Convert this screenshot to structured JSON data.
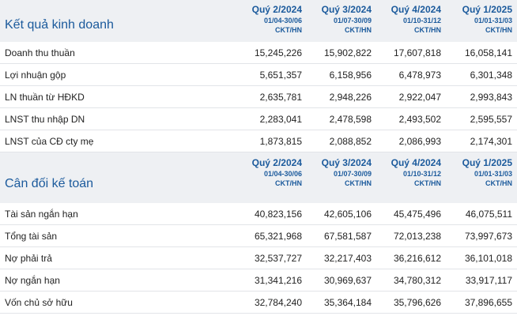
{
  "income": {
    "title": "Kết quả kinh doanh",
    "quarters": [
      {
        "name": "Quý 2/2024",
        "range": "01/04-30/06",
        "unit": "CKT/HN"
      },
      {
        "name": "Quý 3/2024",
        "range": "01/07-30/09",
        "unit": "CKT/HN"
      },
      {
        "name": "Quý 4/2024",
        "range": "01/10-31/12",
        "unit": "CKT/HN"
      },
      {
        "name": "Quý 1/2025",
        "range": "01/01-31/03",
        "unit": "CKT/HN"
      }
    ],
    "rows": [
      {
        "label": "Doanh thu thuần",
        "values": [
          "15,245,226",
          "15,902,822",
          "17,607,818",
          "16,058,141"
        ]
      },
      {
        "label": "Lợi nhuận gộp",
        "values": [
          "5,651,357",
          "6,158,956",
          "6,478,973",
          "6,301,348"
        ]
      },
      {
        "label": "LN thuần từ HĐKD",
        "values": [
          "2,635,781",
          "2,948,226",
          "2,922,047",
          "2,993,843"
        ]
      },
      {
        "label": "LNST thu nhập DN",
        "values": [
          "2,283,041",
          "2,478,598",
          "2,493,502",
          "2,595,557"
        ]
      },
      {
        "label": "LNST của CĐ cty mẹ",
        "values": [
          "1,873,815",
          "2,088,852",
          "2,086,993",
          "2,174,301"
        ]
      }
    ]
  },
  "balance": {
    "title": "Cân đối kế toán",
    "quarters": [
      {
        "name": "Quý 2/2024",
        "range": "01/04-30/06",
        "unit": "CKT/HN"
      },
      {
        "name": "Quý 3/2024",
        "range": "01/07-30/09",
        "unit": "CKT/HN"
      },
      {
        "name": "Quý 4/2024",
        "range": "01/10-31/12",
        "unit": "CKT/HN"
      },
      {
        "name": "Quý 1/2025",
        "range": "01/01-31/03",
        "unit": "CKT/HN"
      }
    ],
    "rows": [
      {
        "label": "Tài sản ngắn hạn",
        "values": [
          "40,823,156",
          "42,605,106",
          "45,475,496",
          "46,075,511"
        ]
      },
      {
        "label": "Tổng tài sản",
        "values": [
          "65,321,968",
          "67,581,587",
          "72,013,238",
          "73,997,673"
        ]
      },
      {
        "label": "Nợ phải trả",
        "values": [
          "32,537,727",
          "32,217,403",
          "36,216,612",
          "36,101,018"
        ]
      },
      {
        "label": "Nợ ngắn hạn",
        "values": [
          "31,341,216",
          "30,969,637",
          "34,780,312",
          "33,917,117"
        ]
      },
      {
        "label": "Vốn chủ sở hữu",
        "values": [
          "32,784,240",
          "35,364,184",
          "35,796,626",
          "37,896,655"
        ]
      }
    ]
  }
}
